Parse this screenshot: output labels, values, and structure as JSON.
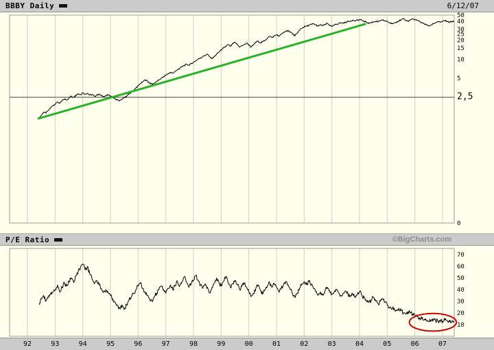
{
  "header": {
    "title": "BBBY Daily",
    "date": "6/12/07"
  },
  "pe_header": {
    "title": "P/E Ratio",
    "watermark": "©BigCharts.com"
  },
  "colors": {
    "background": "#FFFFEE",
    "panel_bar": "#CBCBCB",
    "grid": "#CFCFBC",
    "plot_border": "#9C9C8E",
    "price_line": "#000000",
    "trendline": "#28B228",
    "reference_line": "#444444",
    "annotation": "#CC0000",
    "watermark": "#8C8C8C"
  },
  "x_axis": {
    "labels": [
      {
        "label": "92",
        "value": 1992
      },
      {
        "label": "93",
        "value": 1993
      },
      {
        "label": "94",
        "value": 1994
      },
      {
        "label": "95",
        "value": 1995
      },
      {
        "label": "96",
        "value": 1996
      },
      {
        "label": "97",
        "value": 1997
      },
      {
        "label": "98",
        "value": 1998
      },
      {
        "label": "99",
        "value": 1999
      },
      {
        "label": "00",
        "value": 2000
      },
      {
        "label": "01",
        "value": 2001
      },
      {
        "label": "02",
        "value": 2002
      },
      {
        "label": "03",
        "value": 2003
      },
      {
        "label": "04",
        "value": 2004
      },
      {
        "label": "05",
        "value": 2005
      },
      {
        "label": "06",
        "value": 2006
      },
      {
        "label": "07",
        "value": 2007
      }
    ]
  },
  "chart_data": [
    {
      "type": "line",
      "name": "BBBY Daily closing price",
      "title": "BBBY Daily",
      "scale": "log-y",
      "x_start": 1992.42,
      "x_step": 0.08333,
      "xlim": [
        1992,
        2007.45
      ],
      "ylim": [
        0,
        50
      ],
      "grid": "vertical-years",
      "y_ticks": [
        {
          "label": "50",
          "value": 50
        },
        {
          "label": "40",
          "value": 40
        },
        {
          "label": "30",
          "value": 30
        },
        {
          "label": "25",
          "value": 25
        },
        {
          "label": "20",
          "value": 20
        },
        {
          "label": "15",
          "value": 15
        },
        {
          "label": "10",
          "value": 10
        },
        {
          "label": "5",
          "value": 5
        },
        {
          "label": "2,5",
          "value": 2.5,
          "emphasis": true
        },
        {
          "label": "0",
          "value": 0
        }
      ],
      "reference_line": {
        "value": 2.5
      },
      "trendline": {
        "x1": 1992.4,
        "y1": 1.15,
        "x2": 2004.2,
        "y2": 36
      },
      "values": [
        1.15,
        1.3,
        1.45,
        1.4,
        1.55,
        1.7,
        1.85,
        1.95,
        2.1,
        2.0,
        2.2,
        2.35,
        2.25,
        2.45,
        2.6,
        2.5,
        2.7,
        2.85,
        2.75,
        2.95,
        2.8,
        2.9,
        2.7,
        2.75,
        2.6,
        2.7,
        2.8,
        2.65,
        2.55,
        2.65,
        2.7,
        2.6,
        2.5,
        2.35,
        2.25,
        2.2,
        2.3,
        2.45,
        2.6,
        2.8,
        3.0,
        3.2,
        3.5,
        3.8,
        4.1,
        4.4,
        4.7,
        4.5,
        4.2,
        4.0,
        4.2,
        4.45,
        4.7,
        5.0,
        5.3,
        5.6,
        5.9,
        6.2,
        6.0,
        6.4,
        6.8,
        7.2,
        7.6,
        8.0,
        8.3,
        8.1,
        8.5,
        9.0,
        9.5,
        10.0,
        10.5,
        11.0,
        11.5,
        12.0,
        11.0,
        10.2,
        11.0,
        12.0,
        13.0,
        14.0,
        15.0,
        16.0,
        17.0,
        16.0,
        17.5,
        18.5,
        17.0,
        15.5,
        16.5,
        17.0,
        18.0,
        17.0,
        15.5,
        17.0,
        18.5,
        19.5,
        18.0,
        19.0,
        20.0,
        21.5,
        23.0,
        22.0,
        23.5,
        24.5,
        23.0,
        25.0,
        26.5,
        27.5,
        28.5,
        27.0,
        25.0,
        23.5,
        26.0,
        29.0,
        31.0,
        32.5,
        33.5,
        34.5,
        35.5,
        36.5,
        35.0,
        33.5,
        35.0,
        34.0,
        35.5,
        37.0,
        34.5,
        33.0,
        34.5,
        36.0,
        37.0,
        38.0,
        37.0,
        38.5,
        39.5,
        40.5,
        41.5,
        40.5,
        41.5,
        42.5,
        41.5,
        40.0,
        38.5,
        37.0,
        38.0,
        39.0,
        40.0,
        39.0,
        40.5,
        41.5,
        40.5,
        39.5,
        38.0,
        36.5,
        37.5,
        39.0,
        40.5,
        42.0,
        43.5,
        41.5,
        40.0,
        42.0,
        43.5,
        42.5,
        41.0,
        39.5,
        38.0,
        36.5,
        35.0,
        33.5,
        35.0,
        36.5,
        38.0,
        39.5,
        38.5,
        40.0,
        41.0,
        39.5,
        38.5,
        40.0,
        39.0
      ]
    },
    {
      "type": "line",
      "name": "P/E Ratio",
      "title": "P/E Ratio",
      "scale": "linear",
      "x_start": 1992.42,
      "x_step": 0.08333,
      "xlim": [
        1992,
        2007.45
      ],
      "ylim": [
        0,
        75
      ],
      "grid": "vertical-years",
      "y_ticks": [
        {
          "label": "70",
          "value": 70
        },
        {
          "label": "60",
          "value": 60
        },
        {
          "label": "50",
          "value": 50
        },
        {
          "label": "40",
          "value": 40
        },
        {
          "label": "30",
          "value": 30
        },
        {
          "label": "20",
          "value": 20
        },
        {
          "label": "10",
          "value": 10
        }
      ],
      "annotation_ellipse": {
        "x_center": 2006.65,
        "y_center": 12,
        "x_radius": 0.85,
        "y_radius": 7.5
      },
      "values": [
        28,
        32,
        35,
        30,
        33,
        36,
        38,
        40,
        44,
        38,
        42,
        46,
        43,
        47,
        50,
        46,
        52,
        56,
        59,
        62,
        57,
        60,
        53,
        49,
        45,
        48,
        44,
        41,
        38,
        40,
        37,
        35,
        32,
        29,
        26,
        24,
        27,
        23,
        27,
        31,
        34,
        37,
        40,
        43,
        46,
        41,
        38,
        35,
        32,
        30,
        34,
        37,
        40,
        43,
        40,
        37,
        41,
        44,
        40,
        43,
        47,
        43,
        47,
        51,
        46,
        42,
        45,
        48,
        52,
        48,
        44,
        41,
        45,
        42,
        37,
        42,
        46,
        50,
        46,
        43,
        47,
        51,
        46,
        42,
        45,
        48,
        44,
        40,
        43,
        46,
        42,
        38,
        34,
        37,
        41,
        44,
        39,
        36,
        40,
        43,
        46,
        42,
        45,
        42,
        38,
        41,
        44,
        47,
        44,
        40,
        36,
        33,
        37,
        41,
        45,
        47,
        44,
        47,
        44,
        41,
        38,
        35,
        38,
        36,
        39,
        42,
        39,
        36,
        38,
        40,
        37,
        35,
        37,
        39,
        36,
        34,
        36,
        34,
        36,
        38,
        35,
        33,
        31,
        29,
        31,
        33,
        30,
        28,
        30,
        32,
        29,
        27,
        25,
        23,
        24,
        22,
        24,
        22,
        20,
        19,
        21,
        20,
        19,
        18,
        17,
        16,
        15,
        14,
        13,
        12.5,
        13.5,
        14,
        13,
        13.5,
        12.5,
        13,
        14,
        13.5,
        12.5,
        13,
        12.5
      ]
    }
  ]
}
